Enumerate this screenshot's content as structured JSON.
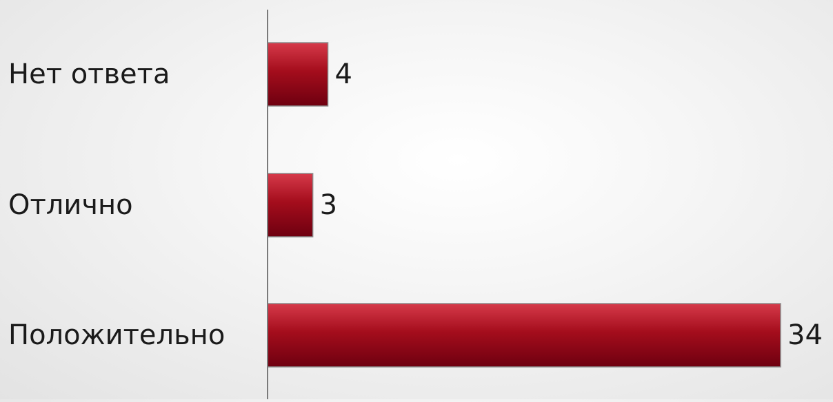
{
  "chart_data": {
    "type": "bar",
    "orientation": "horizontal",
    "categories": [
      "Нет ответа",
      "Отлично",
      "Положительно"
    ],
    "values": [
      4,
      3,
      34
    ],
    "data_labels": [
      "4",
      "3",
      "34"
    ],
    "title": "",
    "xlabel": "",
    "ylabel": "",
    "xlim": [
      0,
      34
    ],
    "grid": false,
    "legend": "none",
    "colors": {
      "bar_top": "#d63a4a",
      "bar_mid": "#a40d1c",
      "bar_bottom": "#6e0010",
      "bar_stroke": "#8c8c8c",
      "axis": "#7a7a7a",
      "text": "#1a1a1a"
    }
  }
}
